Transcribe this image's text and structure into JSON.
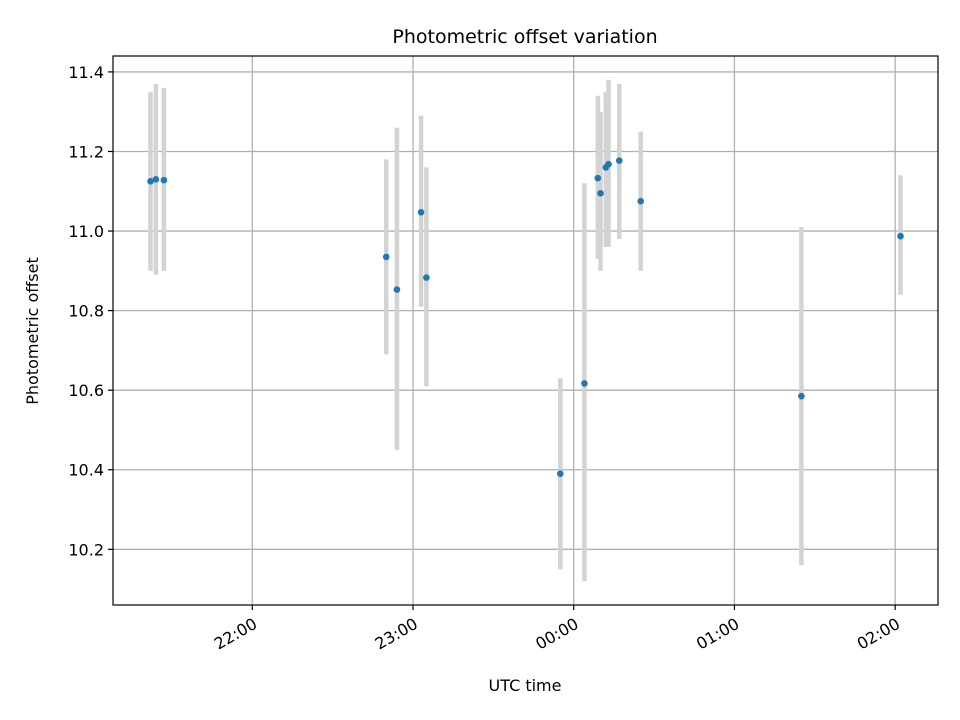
{
  "chart_data": {
    "type": "scatter",
    "title": "Photometric offset variation",
    "xlabel": "UTC time",
    "ylabel": "Photometric offset",
    "x_unit": "UTC time (HH:MM)",
    "xlim": [
      "21:08",
      "02:16"
    ],
    "ylim": [
      10.06,
      11.44
    ],
    "x_ticks": [
      "22:00",
      "23:00",
      "00:00",
      "01:00",
      "02:00"
    ],
    "y_ticks": [
      10.2,
      10.4,
      10.6,
      10.8,
      11.0,
      11.2,
      11.4
    ],
    "y_tick_labels": [
      "10.2",
      "10.4",
      "10.6",
      "10.8",
      "11.0",
      "11.2",
      "11.4"
    ],
    "grid": true,
    "legend": "none",
    "colors": {
      "point": "#1f77b4",
      "errorbar": "#d3d3d3",
      "grid": "#b0b0b0"
    },
    "points": [
      {
        "x": "21:22",
        "y": 11.125,
        "ylo": 10.9,
        "yhi": 11.35
      },
      {
        "x": "21:24",
        "y": 11.13,
        "ylo": 10.89,
        "yhi": 11.37
      },
      {
        "x": "21:27",
        "y": 11.128,
        "ylo": 10.9,
        "yhi": 11.36
      },
      {
        "x": "22:50",
        "y": 10.935,
        "ylo": 10.69,
        "yhi": 11.18
      },
      {
        "x": "22:54",
        "y": 10.853,
        "ylo": 10.45,
        "yhi": 11.26
      },
      {
        "x": "23:03",
        "y": 11.047,
        "ylo": 10.81,
        "yhi": 11.29
      },
      {
        "x": "23:05",
        "y": 10.883,
        "ylo": 10.61,
        "yhi": 11.16
      },
      {
        "x": "23:55",
        "y": 10.39,
        "ylo": 10.15,
        "yhi": 10.63
      },
      {
        "x": "00:04",
        "y": 10.617,
        "ylo": 10.12,
        "yhi": 11.12
      },
      {
        "x": "00:09",
        "y": 11.133,
        "ylo": 10.93,
        "yhi": 11.34
      },
      {
        "x": "00:10",
        "y": 11.095,
        "ylo": 10.9,
        "yhi": 11.3
      },
      {
        "x": "00:12",
        "y": 11.16,
        "ylo": 10.96,
        "yhi": 11.35
      },
      {
        "x": "00:13",
        "y": 11.168,
        "ylo": 10.96,
        "yhi": 11.38
      },
      {
        "x": "00:17",
        "y": 11.177,
        "ylo": 10.98,
        "yhi": 11.37
      },
      {
        "x": "00:25",
        "y": 11.075,
        "ylo": 10.9,
        "yhi": 11.25
      },
      {
        "x": "01:25",
        "y": 10.585,
        "ylo": 10.16,
        "yhi": 11.01
      },
      {
        "x": "02:02",
        "y": 10.987,
        "ylo": 10.84,
        "yhi": 11.14
      }
    ]
  }
}
